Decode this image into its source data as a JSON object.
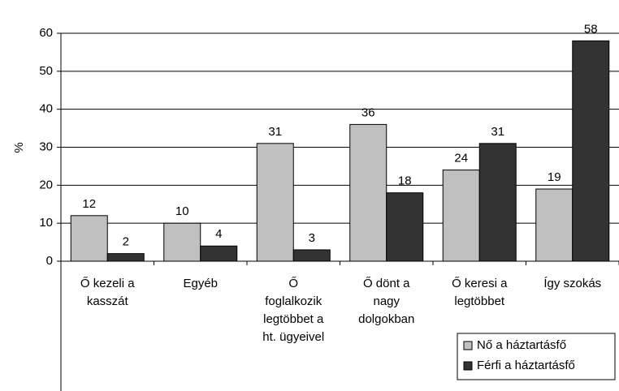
{
  "chart_data": {
    "type": "bar",
    "y_label": "%",
    "categories": [
      "Ő kezeli a\nkasszát",
      "Egyéb",
      "Ő\nfoglalkozik\nlegtöbbet a\nht. ügyeivel",
      "Ő dönt a\nnagy\ndolgokban",
      "Ő keresi a\nlegtöbbet",
      "Így szokás"
    ],
    "series": [
      {
        "name": "Nő a háztartásfő",
        "color": "#c0c0c0",
        "values": [
          12,
          10,
          31,
          36,
          24,
          19
        ]
      },
      {
        "name": "Férfi a háztartásfő",
        "color": "#333333",
        "values": [
          2,
          4,
          3,
          18,
          31,
          58
        ]
      }
    ],
    "ylim": [
      0,
      60
    ],
    "yticks": [
      0,
      10,
      20,
      30,
      40,
      50,
      60
    ],
    "grid": true,
    "legend": "bottom-right"
  }
}
